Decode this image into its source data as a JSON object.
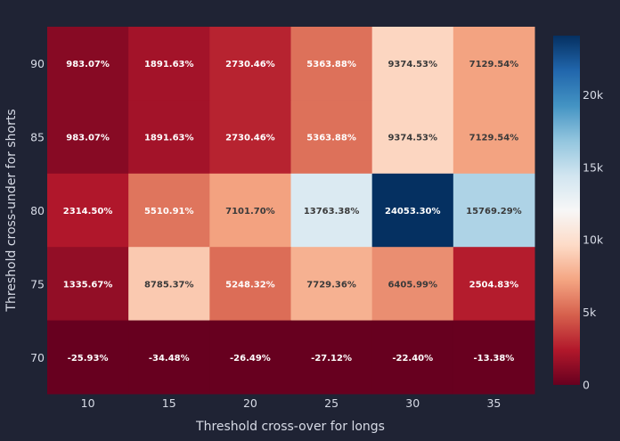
{
  "chart_data": {
    "type": "heatmap",
    "xlabel": "Threshold cross-over for longs",
    "ylabel": "Threshold cross-under for shorts",
    "x": [
      "10",
      "15",
      "20",
      "25",
      "30",
      "35"
    ],
    "y": [
      "90",
      "85",
      "80",
      "75",
      "70"
    ],
    "z": [
      [
        983.07,
        1891.63,
        2730.46,
        5363.88,
        9374.53,
        7129.54
      ],
      [
        983.07,
        1891.63,
        2730.46,
        5363.88,
        9374.53,
        7129.54
      ],
      [
        2314.5,
        5510.91,
        7101.7,
        13763.38,
        24053.3,
        15769.29
      ],
      [
        1335.67,
        8785.37,
        5248.32,
        7729.36,
        6405.99,
        2504.83
      ],
      [
        -25.93,
        -34.48,
        -26.49,
        -27.12,
        -22.4,
        -13.38
      ]
    ],
    "text": [
      [
        "983.07%",
        "1891.63%",
        "2730.46%",
        "5363.88%",
        "9374.53%",
        "7129.54%"
      ],
      [
        "983.07%",
        "1891.63%",
        "2730.46%",
        "5363.88%",
        "9374.53%",
        "7129.54%"
      ],
      [
        "2314.50%",
        "5510.91%",
        "7101.70%",
        "13763.38%",
        "24053.30%",
        "15769.29%"
      ],
      [
        "1335.67%",
        "8785.37%",
        "5248.32%",
        "7729.36%",
        "6405.99%",
        "2504.83%"
      ],
      [
        "-25.93%",
        "-34.48%",
        "-26.49%",
        "-27.12%",
        "-22.40%",
        "-13.38%"
      ]
    ],
    "colorscale": "RdBu",
    "zmin": -34.48,
    "zmax": 24053.3,
    "colorbar": {
      "tickvals": [
        0,
        5000,
        10000,
        15000,
        20000
      ],
      "ticktext": [
        "0",
        "5k",
        "10k",
        "15k",
        "20k"
      ]
    }
  }
}
